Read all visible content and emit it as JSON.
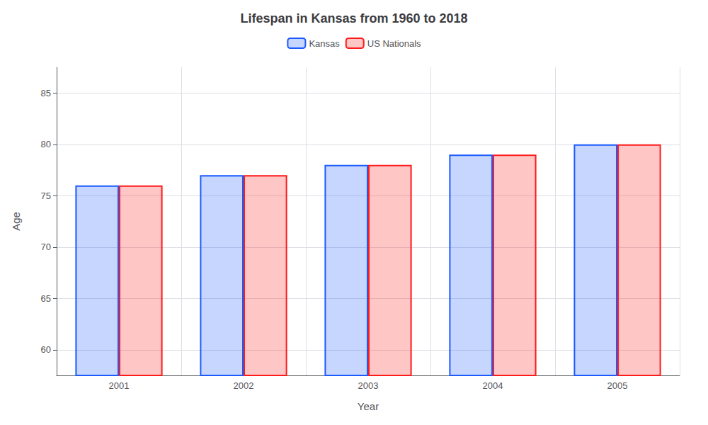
{
  "chart_data": {
    "type": "bar",
    "title": "Lifespan in Kansas from 1960 to 2018",
    "xlabel": "Year",
    "ylabel": "Age",
    "categories": [
      "2001",
      "2002",
      "2003",
      "2004",
      "2005"
    ],
    "series": [
      {
        "name": "Kansas",
        "color": "#1a5aff",
        "values": [
          76,
          77,
          78,
          79,
          80
        ]
      },
      {
        "name": "US Nationals",
        "color": "#ff1a1a",
        "values": [
          76,
          77,
          78,
          79,
          80
        ]
      }
    ],
    "ylim": [
      57.5,
      87.5
    ],
    "yticks": [
      60,
      65,
      70,
      75,
      80,
      85
    ],
    "grid": true,
    "legend": "top"
  }
}
